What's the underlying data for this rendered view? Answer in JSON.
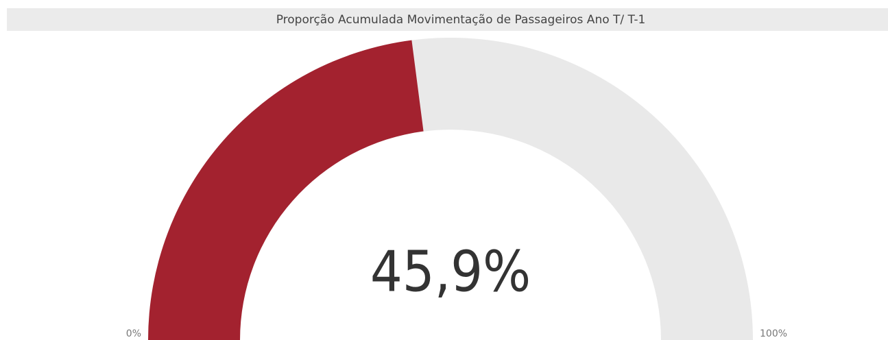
{
  "chart_data": {
    "type": "gauge",
    "title": "Proporção Acumulada Movimentação de Passageiros Ano T/ T-1",
    "values": [
      45.9
    ],
    "value_labels": [
      "45,9%"
    ],
    "color": "#a3222f",
    "track_color": "#e9e9e9",
    "ylim": [
      0,
      100
    ],
    "yticks": [
      {
        "value": 0,
        "label": "0%"
      },
      {
        "value": 100,
        "label": "100%"
      }
    ]
  }
}
